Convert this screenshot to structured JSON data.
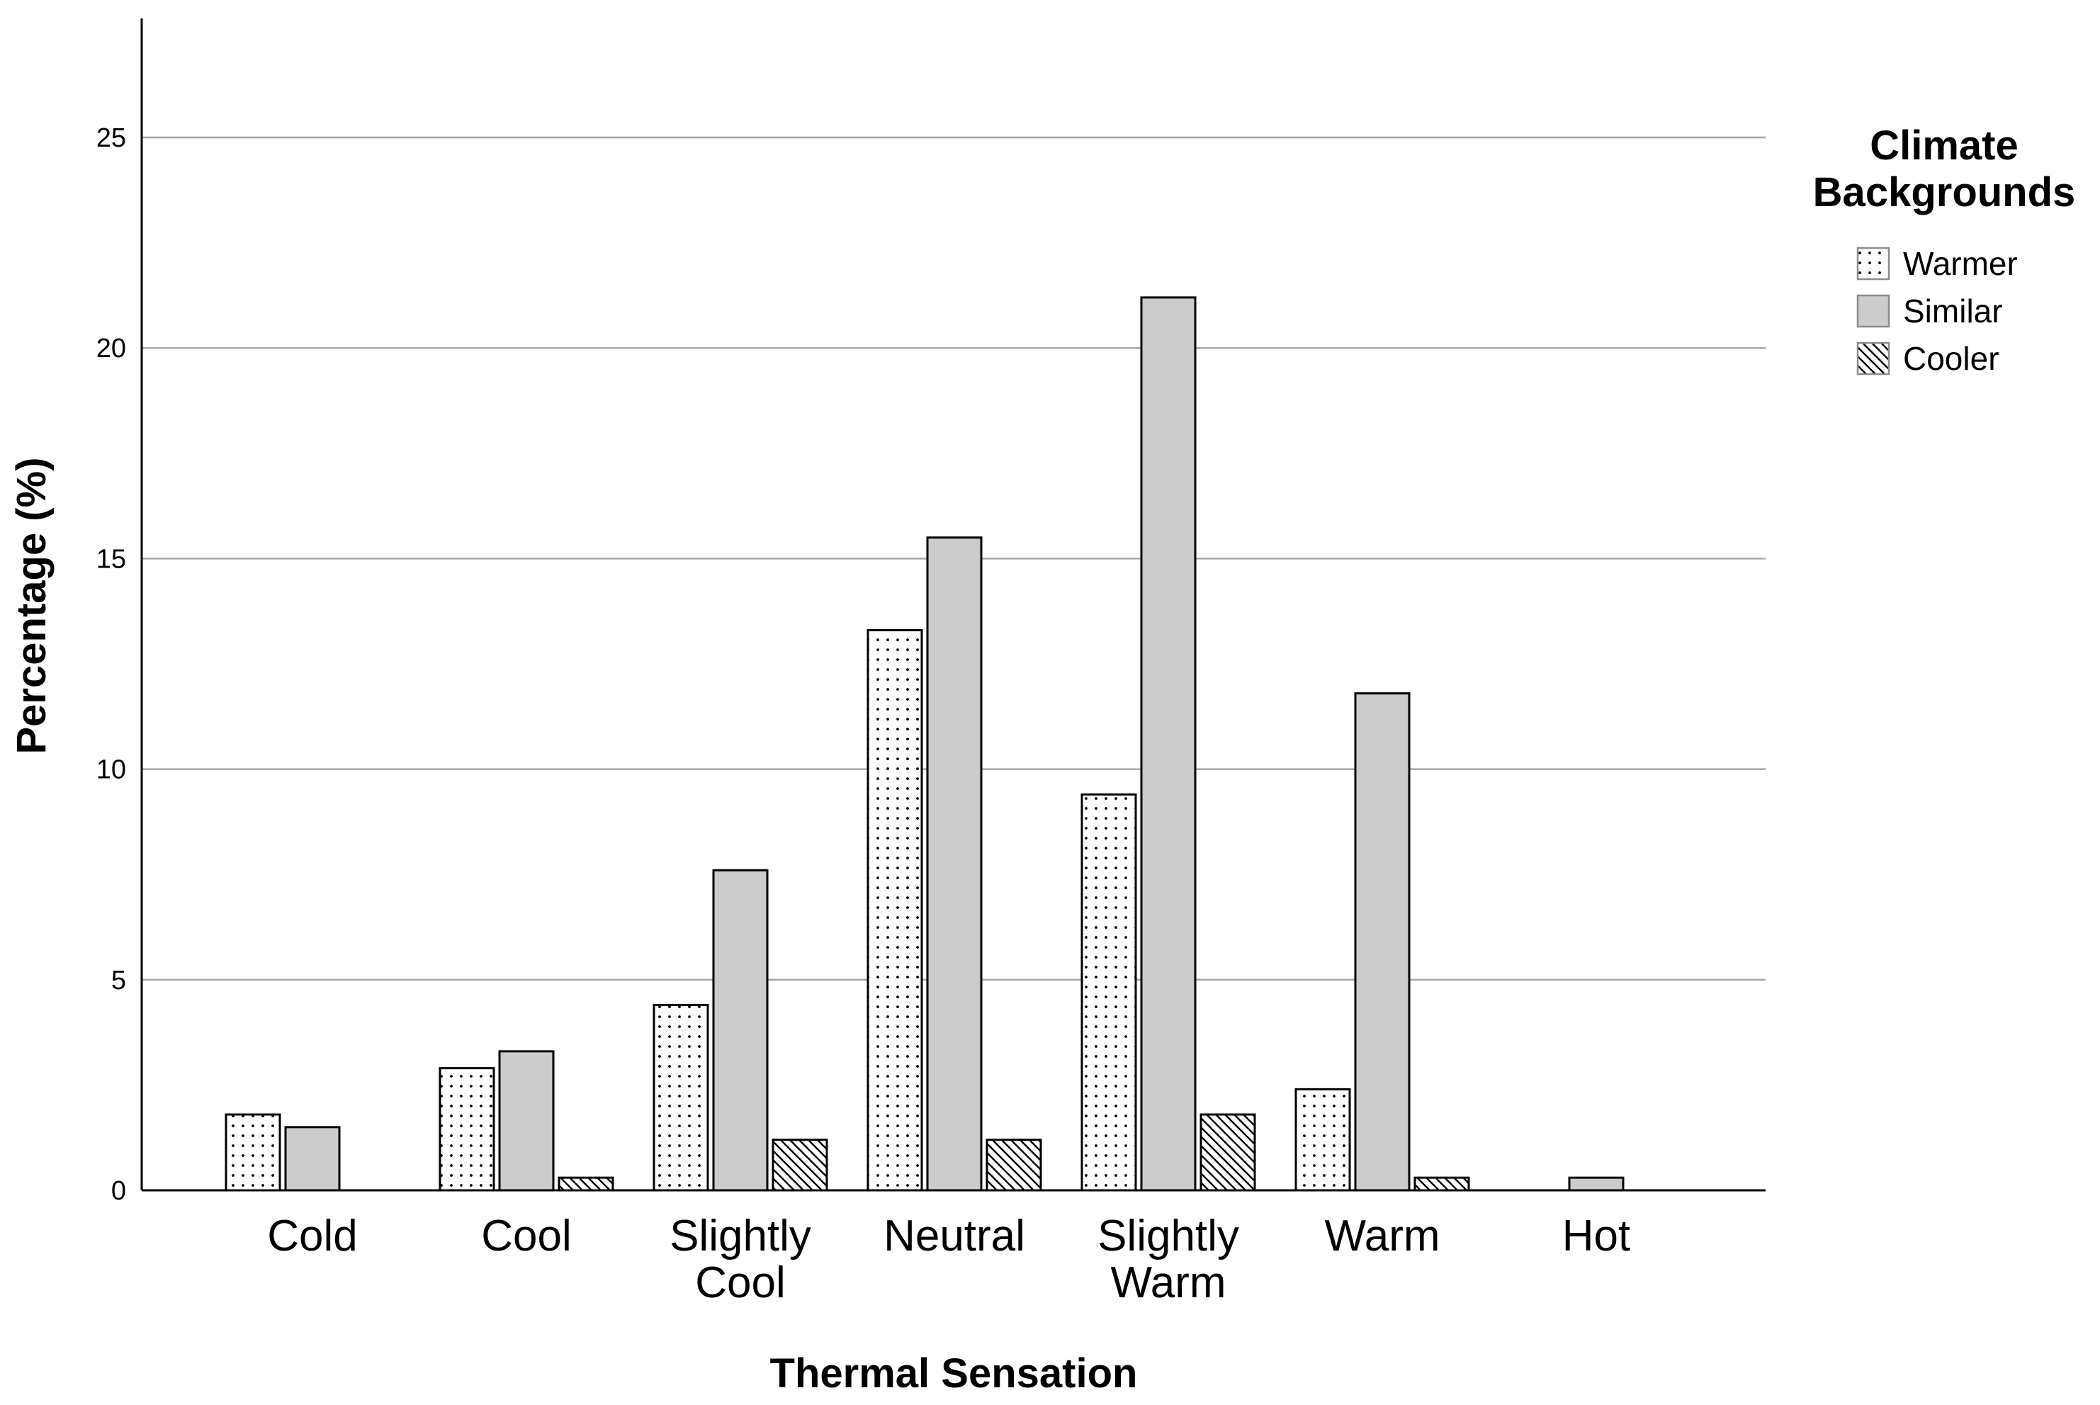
{
  "chart_data": {
    "type": "bar",
    "xlabel": "Thermal Sensation",
    "ylabel": "Percentage (%)",
    "ylim": [
      0,
      27.5
    ],
    "yticks": [
      0,
      5,
      10,
      15,
      20,
      25
    ],
    "grid": "horizontal",
    "categories": [
      [
        "Cold"
      ],
      [
        "Cool"
      ],
      [
        "Slightly",
        "Cool"
      ],
      [
        "Neutral"
      ],
      [
        "Slightly",
        "Warm"
      ],
      [
        "Warm"
      ],
      [
        "Hot"
      ]
    ],
    "legend": {
      "title": [
        "Climate",
        "Backgrounds"
      ],
      "placement": "right"
    },
    "series": [
      {
        "name": "Warmer",
        "pattern": "dots",
        "values": [
          1.8,
          2.9,
          4.4,
          13.3,
          9.4,
          2.4,
          0
        ]
      },
      {
        "name": "Similar",
        "pattern": "solid",
        "values": [
          1.5,
          3.3,
          7.6,
          15.5,
          21.2,
          11.8,
          0.3
        ]
      },
      {
        "name": "Cooler",
        "pattern": "diagonal",
        "values": [
          0,
          0.3,
          1.2,
          1.2,
          1.8,
          0.3,
          0
        ]
      }
    ],
    "colors": {
      "similar_fill": "#cccccc",
      "bar_stroke": "#000000",
      "grid": "#a6a6a6"
    }
  }
}
